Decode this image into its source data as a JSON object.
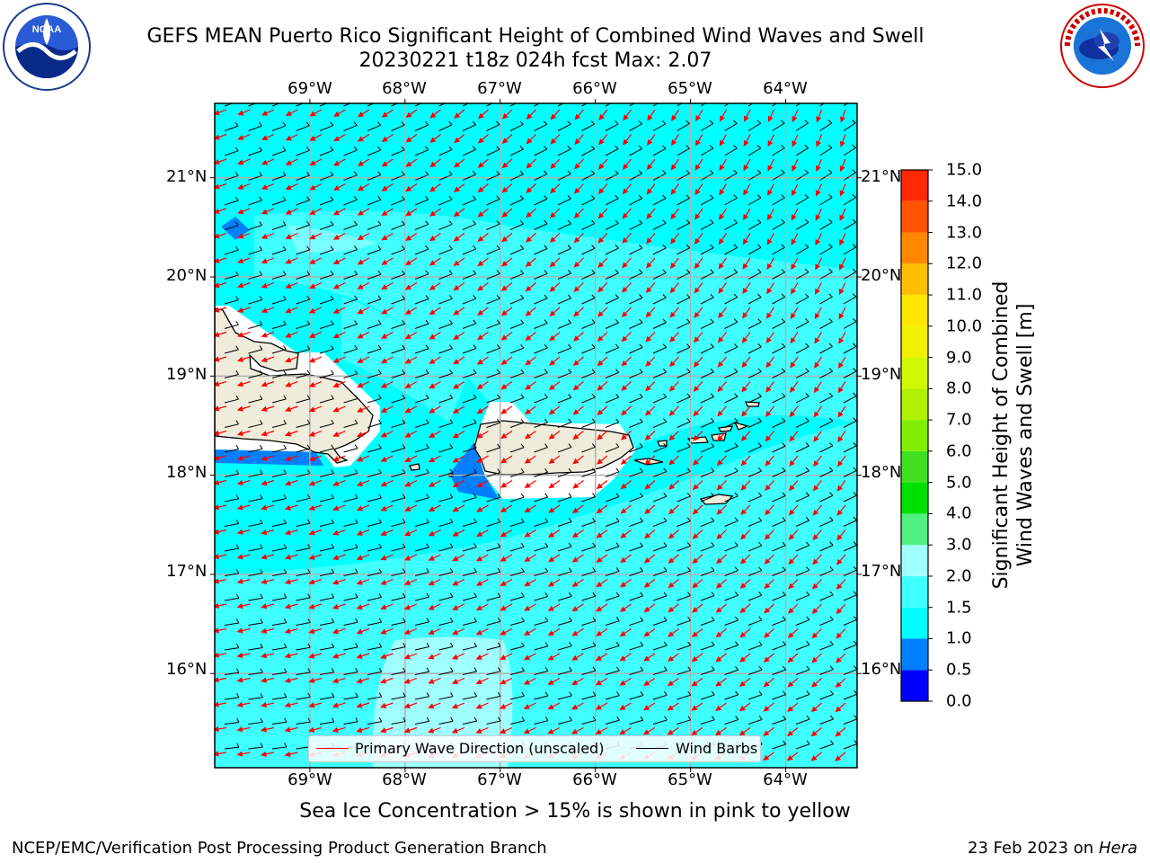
{
  "header": {
    "title_line1": "GEFS MEAN Puerto Rico Significant Height of Combined Wind Waves and Swell",
    "title_line2": "20230221 t18z 024h fcst   Max: 2.07"
  },
  "logos": {
    "left": "noaa-logo",
    "right": "nws-logo"
  },
  "map": {
    "lon_labels": [
      "69°W",
      "68°W",
      "67°W",
      "66°W",
      "65°W",
      "64°W"
    ],
    "lat_labels": [
      "21°N",
      "20°N",
      "19°N",
      "18°N",
      "17°N",
      "16°N"
    ],
    "lon_values": [
      -69,
      -68,
      -67,
      -66,
      -65,
      -64
    ],
    "lat_values": [
      21,
      20,
      19,
      18,
      17,
      16
    ],
    "extent": {
      "lon_min": -70,
      "lon_max": -63.25,
      "lat_min": 15.05,
      "lat_max": 21.75
    },
    "ocean_color": "#00ffff",
    "land_color": "#efecdc",
    "arrow_color": "#ff0000",
    "barb_color": "#000000",
    "grid": true
  },
  "colorbar": {
    "label_line1": "Significant Height of Combined",
    "label_line2": "Wind Waves and Swell [m]",
    "ticks": [
      "15.0",
      "14.0",
      "13.0",
      "12.0",
      "11.0",
      "10.0",
      "9.0",
      "8.0",
      "7.0",
      "6.0",
      "5.0",
      "4.0",
      "3.0",
      "2.0",
      "1.5",
      "1.0",
      "0.5",
      "0.0"
    ],
    "levels": [
      0.0,
      0.5,
      1.0,
      1.5,
      2.0,
      3.0,
      4.0,
      5.0,
      6.0,
      7.0,
      8.0,
      9.0,
      10.0,
      11.0,
      12.0,
      13.0,
      14.0,
      15.0
    ],
    "colors": [
      "#0000ff",
      "#0080ff",
      "#00ffff",
      "#40ffff",
      "#a0ffff",
      "#50f080",
      "#00e000",
      "#40e020",
      "#80ee00",
      "#b0f000",
      "#d0f800",
      "#f0f000",
      "#ffe800",
      "#ffbf00",
      "#ff8800",
      "#ff5500",
      "#ff2800"
    ]
  },
  "legend": {
    "primary_wave_label": "Primary Wave Direction (unscaled)",
    "wind_barbs_label": "Wind Barbs"
  },
  "subtitle": "Sea Ice Concentration > 15% is shown in pink to yellow",
  "footer": {
    "left": "NCEP/EMC/Verification Post Processing Product Generation Branch",
    "right_date": "23 Feb 2023 on",
    "right_host": "Hera"
  }
}
